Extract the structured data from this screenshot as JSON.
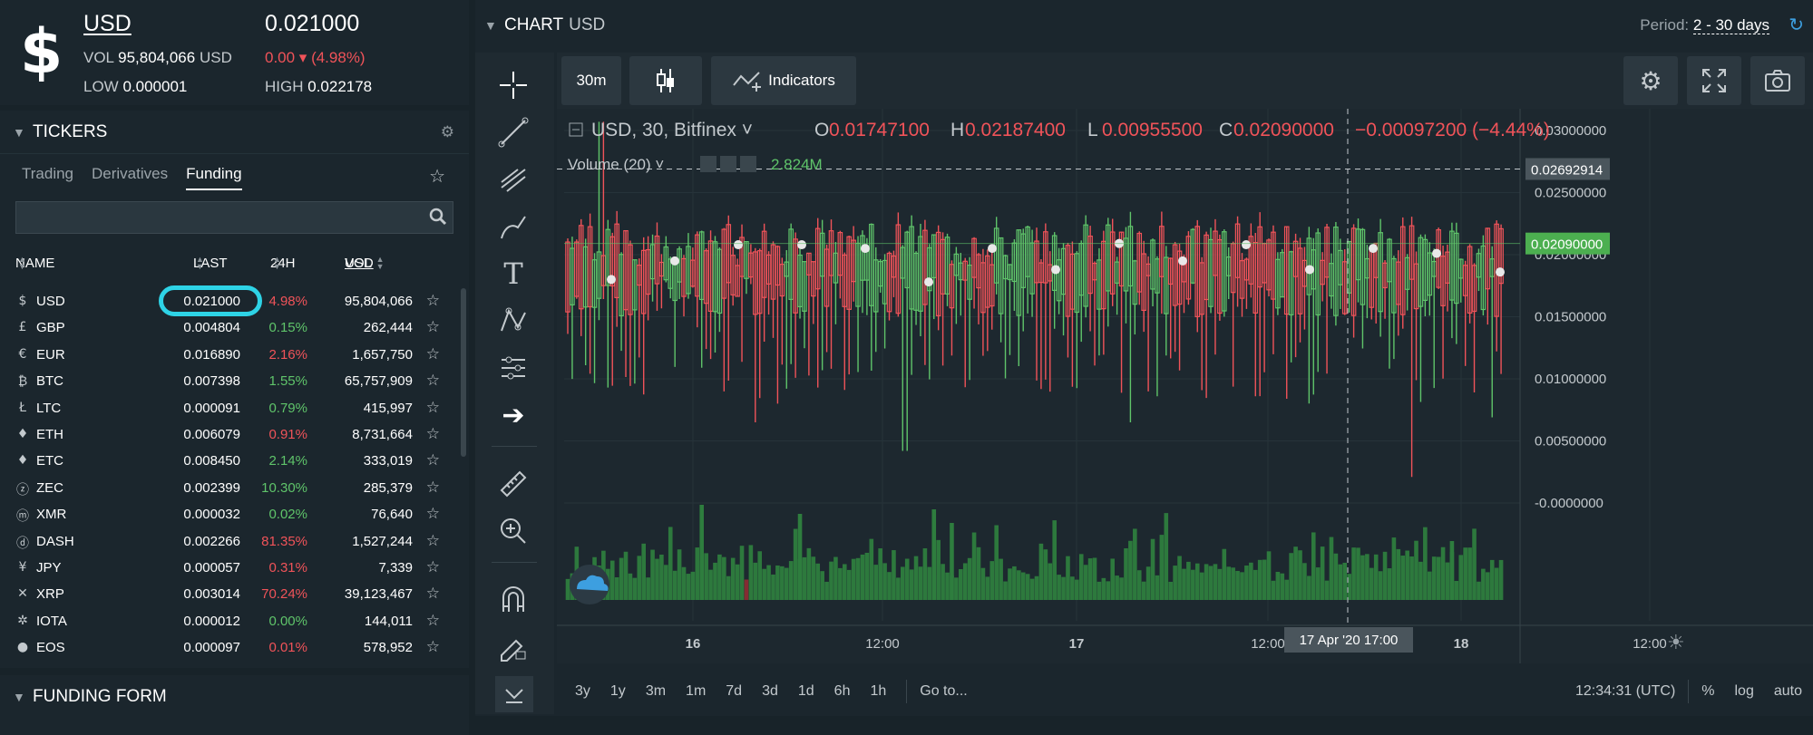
{
  "summary": {
    "symbol_icon": "$",
    "symbol": "USD",
    "price": "0.021000",
    "vol_label": "VOL",
    "vol_value": "95,804,066",
    "vol_unit": "USD",
    "change": "0.00 ▾ (4.98%)",
    "low_label": "LOW",
    "low_value": "0.000001",
    "high_label": "HIGH",
    "high_value": "0.022178"
  },
  "tickers": {
    "title": "TICKERS",
    "tabs": [
      "Trading",
      "Derivatives",
      "Funding"
    ],
    "active_tab": "Funding",
    "search_placeholder": "",
    "columns": {
      "name": "NAME",
      "last": "LAST",
      "change": "24H",
      "vol": "VOL",
      "vol_unit": "USD"
    },
    "rows": [
      {
        "icon": "$",
        "name": "USD",
        "last": "0.021000",
        "change": "4.98%",
        "dir": "dn",
        "vol": "95,804,066"
      },
      {
        "icon": "£",
        "name": "GBP",
        "last": "0.004804",
        "change": "0.15%",
        "dir": "up",
        "vol": "262,444"
      },
      {
        "icon": "€",
        "name": "EUR",
        "last": "0.016890",
        "change": "2.16%",
        "dir": "dn",
        "vol": "1,657,750"
      },
      {
        "icon": "₿",
        "name": "BTC",
        "last": "0.007398",
        "change": "1.55%",
        "dir": "up",
        "vol": "65,757,909"
      },
      {
        "icon": "Ł",
        "name": "LTC",
        "last": "0.000091",
        "change": "0.79%",
        "dir": "up",
        "vol": "415,997"
      },
      {
        "icon": "♦",
        "name": "ETH",
        "last": "0.006079",
        "change": "0.91%",
        "dir": "dn",
        "vol": "8,731,664"
      },
      {
        "icon": "♦",
        "name": "ETC",
        "last": "0.008450",
        "change": "2.14%",
        "dir": "up",
        "vol": "333,019"
      },
      {
        "icon": "ⓩ",
        "name": "ZEC",
        "last": "0.002399",
        "change": "10.30%",
        "dir": "up",
        "vol": "285,379"
      },
      {
        "icon": "ⓜ",
        "name": "XMR",
        "last": "0.000032",
        "change": "0.02%",
        "dir": "up",
        "vol": "76,640"
      },
      {
        "icon": "ⓓ",
        "name": "DASH",
        "last": "0.002266",
        "change": "81.35%",
        "dir": "dn",
        "vol": "1,527,244"
      },
      {
        "icon": "¥",
        "name": "JPY",
        "last": "0.000057",
        "change": "0.31%",
        "dir": "dn",
        "vol": "7,339"
      },
      {
        "icon": "✕",
        "name": "XRP",
        "last": "0.003014",
        "change": "70.24%",
        "dir": "dn",
        "vol": "39,123,467"
      },
      {
        "icon": "✲",
        "name": "IOTA",
        "last": "0.000012",
        "change": "0.00%",
        "dir": "up",
        "vol": "144,011"
      },
      {
        "icon": "●",
        "name": "EOS",
        "last": "0.000097",
        "change": "0.01%",
        "dir": "dn",
        "vol": "578,952"
      }
    ]
  },
  "funding_form": {
    "title": "FUNDING FORM"
  },
  "chart_panel": {
    "title": "CHART",
    "subtitle": "USD",
    "period_label": "Period:",
    "period_value": "2 - 30 days",
    "interval": "30m",
    "indicators_label": "Indicators",
    "legend_symbol": "USD, 30, Bitfinex",
    "ohlc": {
      "o_label": "O",
      "o": "0.01747100",
      "h_label": "H",
      "h": "0.02187400",
      "l_label": "L",
      "l": "0.00955500",
      "c_label": "C",
      "c": "0.02090000",
      "chg": "−0.00097200 (−4.44%)"
    },
    "volume_label": "Volume (20)",
    "volume_value": "2.824M",
    "crosshair_price": "0.02692914",
    "last_price_tag": "0.02090000",
    "crosshair_time": "17 Apr '20   17:00",
    "time_ranges": [
      "3y",
      "1y",
      "3m",
      "1m",
      "7d",
      "3d",
      "1d",
      "6h",
      "1h"
    ],
    "goto_label": "Go to...",
    "clock": "12:34:31 (UTC)",
    "scale_opts": [
      "%",
      "log",
      "auto"
    ],
    "colors": {
      "up": "#5fc46a",
      "down": "#f05359",
      "volume": "#2e7d3e",
      "accent": "#2ed3e6"
    }
  },
  "chart_data": {
    "type": "candlestick",
    "ylim": [
      -0.0015,
      0.0335
    ],
    "y_ticks": [
      "0.03000000",
      "0.02500000",
      "0.02000000",
      "0.01500000",
      "0.01000000",
      "0.00500000",
      "-0.0000000"
    ],
    "y_tick_values": [
      0.03,
      0.025,
      0.02,
      0.015,
      0.01,
      0.005,
      0
    ],
    "x_ticks": [
      "16",
      "12:00",
      "17",
      "12:00",
      "18",
      "12:00"
    ],
    "series_summary": {
      "last_open": 0.017471,
      "last_high": 0.021874,
      "last_low": 0.009555,
      "last_close": 0.0209,
      "typical_range": [
        0.015,
        0.0225
      ],
      "max_high": 0.0307,
      "min_low": 0.0019
    },
    "spikes": [
      {
        "position": 0.035,
        "high": 0.0307
      },
      {
        "position": 0.2,
        "low": 0.0065
      },
      {
        "position": 0.36,
        "low": 0.0042
      },
      {
        "position": 0.6,
        "low": 0.0065
      },
      {
        "position": 0.9,
        "low": 0.0021
      },
      {
        "position": 0.985,
        "low": 0.0069
      }
    ],
    "markers": [
      0.018,
      0.0195,
      0.0208,
      0.0208,
      0.0205,
      0.0178,
      0.0205,
      0.0188,
      0.0209,
      0.0195,
      0.0208,
      0.0188,
      0.0205,
      0.0201,
      0.0186
    ]
  }
}
